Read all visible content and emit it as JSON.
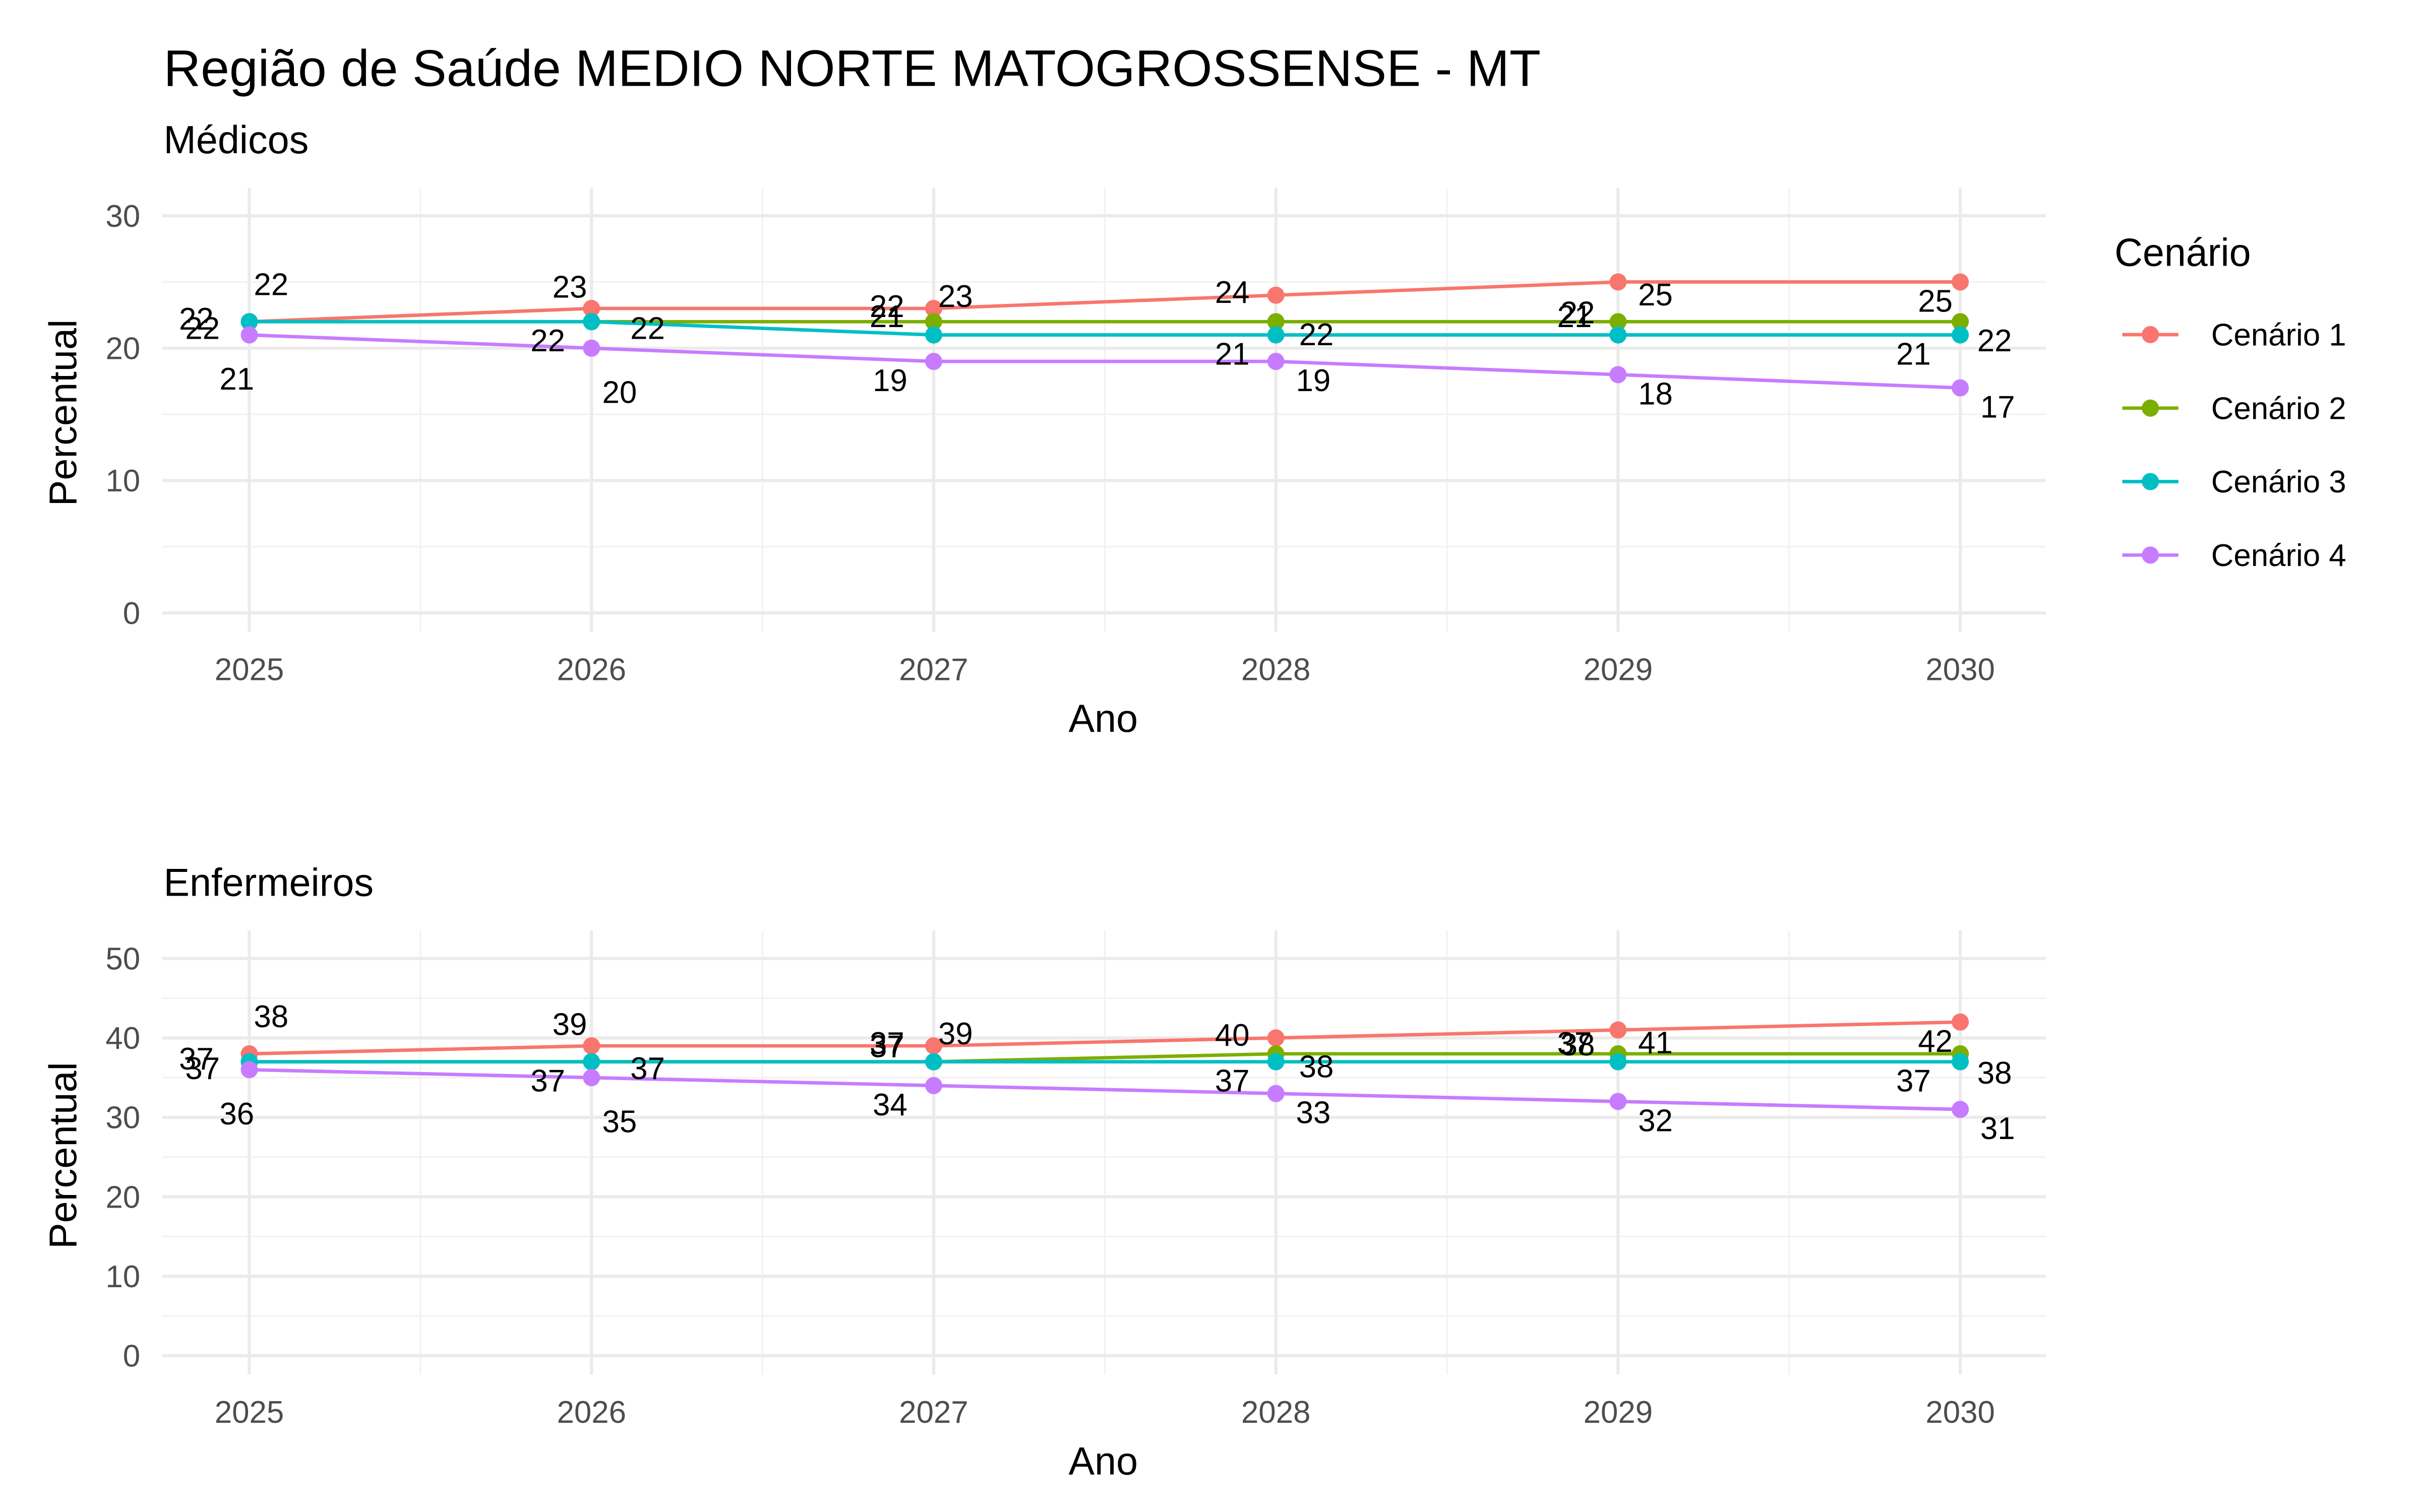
{
  "title": "Região de Saúde MEDIO NORTE MATOGROSSENSE - MT",
  "legend": {
    "title": "Cenário",
    "items": [
      {
        "label": "Cenário 1",
        "color": "#F8766D"
      },
      {
        "label": "Cenário 2",
        "color": "#7CAE00"
      },
      {
        "label": "Cenário 3",
        "color": "#00BFC4"
      },
      {
        "label": "Cenário 4",
        "color": "#C77CFF"
      }
    ]
  },
  "chart_data": [
    {
      "type": "line",
      "title": "Médicos",
      "xlabel": "Ano",
      "ylabel": "Percentual",
      "x": [
        2025,
        2026,
        2027,
        2028,
        2029,
        2030
      ],
      "x_ticks": [
        "2025",
        "2026",
        "2027",
        "2028",
        "2029",
        "2030"
      ],
      "ylim": [
        0,
        30
      ],
      "y_ticks": [
        0,
        10,
        20,
        30
      ],
      "grid": true,
      "legend_position": "right",
      "series": [
        {
          "name": "Cenário 1",
          "values": [
            22,
            23,
            23,
            24,
            25,
            25
          ]
        },
        {
          "name": "Cenário 2",
          "values": [
            22,
            22,
            22,
            22,
            22,
            22
          ]
        },
        {
          "name": "Cenário 3",
          "values": [
            22,
            22,
            21,
            21,
            21,
            21
          ]
        },
        {
          "name": "Cenário 4",
          "values": [
            21,
            20,
            19,
            19,
            18,
            17
          ]
        }
      ]
    },
    {
      "type": "line",
      "title": "Enfermeiros",
      "xlabel": "Ano",
      "ylabel": "Percentual",
      "x": [
        2025,
        2026,
        2027,
        2028,
        2029,
        2030
      ],
      "x_ticks": [
        "2025",
        "2026",
        "2027",
        "2028",
        "2029",
        "2030"
      ],
      "ylim": [
        0,
        50
      ],
      "y_ticks": [
        0,
        10,
        20,
        30,
        40,
        50
      ],
      "grid": true,
      "legend_position": "right",
      "series": [
        {
          "name": "Cenário 1",
          "values": [
            38,
            39,
            39,
            40,
            41,
            42
          ]
        },
        {
          "name": "Cenário 2",
          "values": [
            37,
            37,
            37,
            38,
            38,
            38
          ]
        },
        {
          "name": "Cenário 3",
          "values": [
            37,
            37,
            37,
            37,
            37,
            37
          ]
        },
        {
          "name": "Cenário 4",
          "values": [
            36,
            35,
            34,
            33,
            32,
            31
          ]
        }
      ]
    }
  ]
}
